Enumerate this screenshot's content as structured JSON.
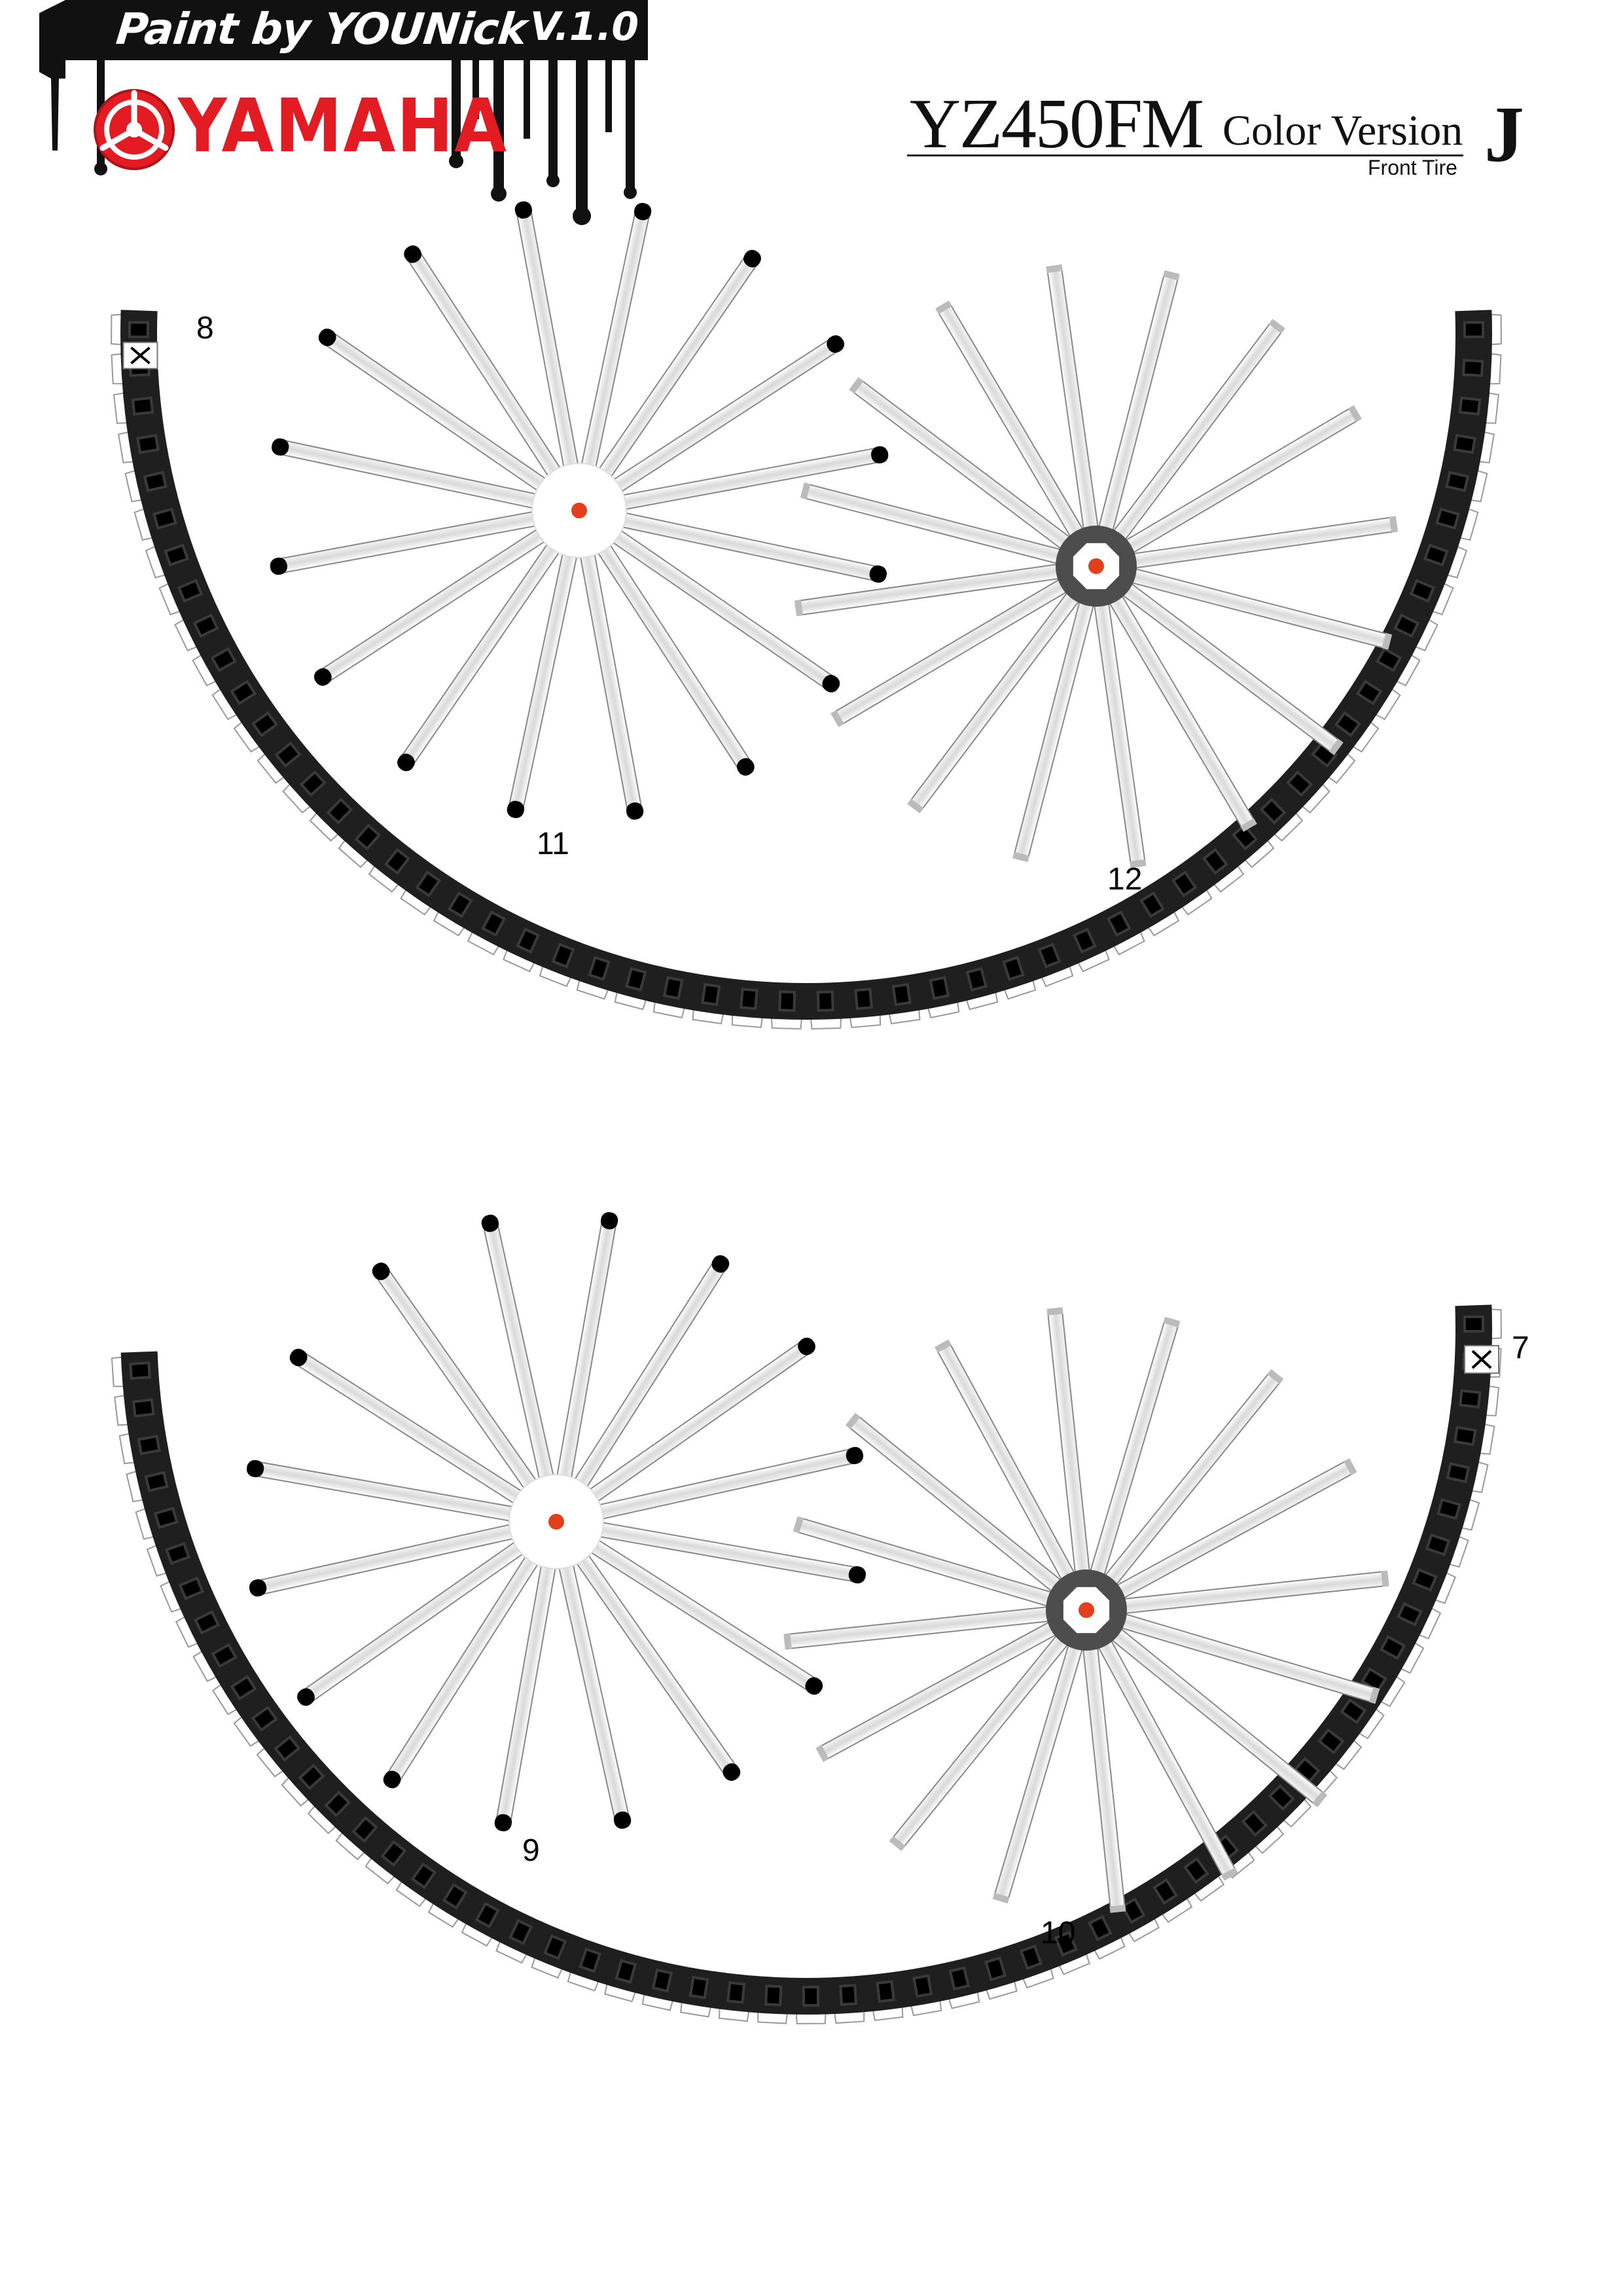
{
  "header": {
    "paint_credit": "Paint by YOUNick",
    "version": "V.1.0",
    "brand": "YAMAHA",
    "model": "YZ450FM",
    "color_version": "Color Version",
    "sheet_letter": "J",
    "part_name": "Front Tire"
  },
  "parts": {
    "upper_tire_number": "8",
    "upper_hub_spokes_number": "11",
    "upper_rim_spokes_number": "12",
    "lower_tire_number": "7",
    "lower_hub_spokes_number": "9",
    "lower_rim_spokes_number": "10"
  },
  "colors": {
    "tire": "#1f1f1f",
    "tread_block": "#3a3a3a",
    "spoke": "#e6e6e6",
    "spoke_tip": "#000000",
    "hub_center": "#e2401c",
    "hub_ring": "#4d4d4d",
    "brand_red": "#e31b23"
  }
}
